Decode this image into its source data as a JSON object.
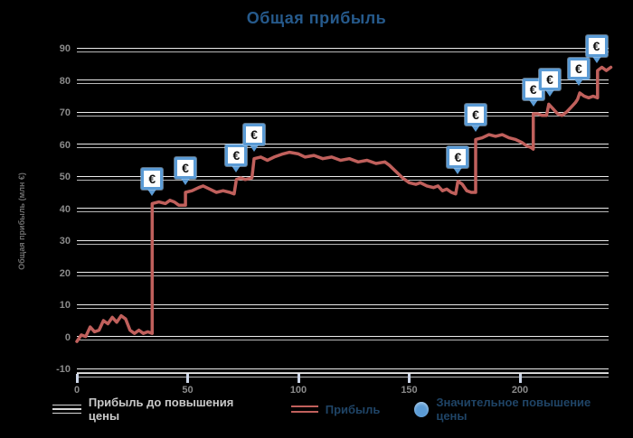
{
  "chart_data": {
    "type": "line",
    "title": "Общая прибыль",
    "ylabel": "Общая прибыль (млн €)",
    "xlim": [
      0,
      240
    ],
    "ylim": [
      -10,
      90
    ],
    "xticks": [
      0,
      50,
      100,
      150,
      200
    ],
    "yticks": [
      90,
      80,
      70,
      60,
      50,
      40,
      30,
      20,
      10,
      0,
      -10
    ],
    "grid": "horizontal-double-lines",
    "legend_position": "bottom",
    "colors": {
      "background": "#000000",
      "title": "#265a8c",
      "axis_text": "#8a8a8a",
      "gridline": "#ffffff",
      "series_line": "#c0605c",
      "event_marker": "#5b9bd5",
      "legend_text_dark": "#1f4466",
      "legend_text_gray": "#c9c9c9"
    },
    "series": [
      {
        "name": "Прибыль",
        "color": "#c0605c",
        "points": [
          [
            0,
            -1
          ],
          [
            2,
            1
          ],
          [
            4,
            0.5
          ],
          [
            6,
            3.5
          ],
          [
            8,
            2
          ],
          [
            10,
            2.5
          ],
          [
            12,
            5.5
          ],
          [
            14,
            4.5
          ],
          [
            16,
            6.5
          ],
          [
            18,
            5
          ],
          [
            20,
            7
          ],
          [
            22,
            6
          ],
          [
            24,
            2.5
          ],
          [
            26,
            1.5
          ],
          [
            28,
            2.5
          ],
          [
            30,
            1.5
          ],
          [
            32,
            2
          ],
          [
            34,
            1.5
          ],
          [
            34,
            42
          ],
          [
            37,
            42.5
          ],
          [
            40,
            42
          ],
          [
            42,
            43
          ],
          [
            44,
            42.5
          ],
          [
            46,
            41.5
          ],
          [
            48,
            41.5
          ],
          [
            49,
            41.5
          ],
          [
            49,
            45.5
          ],
          [
            52,
            46
          ],
          [
            55,
            47
          ],
          [
            57,
            47.5
          ],
          [
            60,
            46.5
          ],
          [
            63,
            45.5
          ],
          [
            66,
            46
          ],
          [
            69,
            45.5
          ],
          [
            71,
            45
          ],
          [
            72,
            49.5
          ],
          [
            74,
            50
          ],
          [
            76,
            49.5
          ],
          [
            79,
            50
          ],
          [
            80,
            56
          ],
          [
            83,
            56.5
          ],
          [
            86,
            55.5
          ],
          [
            89,
            56.5
          ],
          [
            93,
            57.5
          ],
          [
            96,
            58
          ],
          [
            100,
            57.5
          ],
          [
            103,
            56.5
          ],
          [
            107,
            57
          ],
          [
            111,
            56
          ],
          [
            115,
            56.5
          ],
          [
            119,
            55.5
          ],
          [
            123,
            56
          ],
          [
            127,
            55
          ],
          [
            131,
            55.5
          ],
          [
            135,
            54.5
          ],
          [
            139,
            55
          ],
          [
            141,
            54
          ],
          [
            144,
            52
          ],
          [
            147,
            50
          ],
          [
            150,
            48.5
          ],
          [
            153,
            48
          ],
          [
            155,
            48.5
          ],
          [
            158,
            47.5
          ],
          [
            161,
            47
          ],
          [
            163,
            47.5
          ],
          [
            165,
            46
          ],
          [
            167,
            46.5
          ],
          [
            169,
            45.5
          ],
          [
            171,
            45
          ],
          [
            172,
            49
          ],
          [
            174,
            48
          ],
          [
            176,
            46
          ],
          [
            178,
            45.5
          ],
          [
            180,
            45.5
          ],
          [
            180,
            62
          ],
          [
            183,
            62.5
          ],
          [
            186,
            63.5
          ],
          [
            189,
            63
          ],
          [
            192,
            63.5
          ],
          [
            195,
            62.5
          ],
          [
            198,
            62
          ],
          [
            201,
            61
          ],
          [
            203,
            60
          ],
          [
            205,
            59.5
          ],
          [
            206,
            59
          ],
          [
            206,
            70
          ],
          [
            208,
            70
          ],
          [
            210,
            69.5
          ],
          [
            212,
            69.5
          ],
          [
            213,
            73
          ],
          [
            215,
            71.5
          ],
          [
            217,
            70
          ],
          [
            219,
            69.5
          ],
          [
            221,
            70.5
          ],
          [
            223,
            72
          ],
          [
            225,
            73.5
          ],
          [
            226,
            74.5
          ],
          [
            227,
            76.5
          ],
          [
            229,
            75.5
          ],
          [
            231,
            75
          ],
          [
            233,
            75.5
          ],
          [
            235,
            75
          ],
          [
            235,
            83.5
          ],
          [
            237,
            84.5
          ],
          [
            239,
            83.5
          ],
          [
            241,
            84.5
          ]
        ]
      }
    ],
    "events": {
      "symbol": "€",
      "description": "price-increase markers on the profit line",
      "items": [
        {
          "x": 34,
          "v": 42
        },
        {
          "x": 49,
          "v": 45.5
        },
        {
          "x": 72,
          "v": 49.5
        },
        {
          "x": 80,
          "v": 56
        },
        {
          "x": 172,
          "v": 49
        },
        {
          "x": 180,
          "v": 62
        },
        {
          "x": 206,
          "v": 70
        },
        {
          "x": 213.5,
          "v": 73
        },
        {
          "x": 226.5,
          "v": 76.5
        },
        {
          "x": 234.5,
          "v": 83.5
        }
      ]
    },
    "legend": [
      {
        "label": "Прибыль до повышения цены",
        "swatch": "gridline",
        "text_color": "#c9c9c9"
      },
      {
        "label": "Прибыль",
        "swatch": "line",
        "text_color": "#1f4466"
      },
      {
        "label": "Значительное повышение цены",
        "swatch": "circle",
        "text_color": "#1f4466"
      }
    ]
  }
}
